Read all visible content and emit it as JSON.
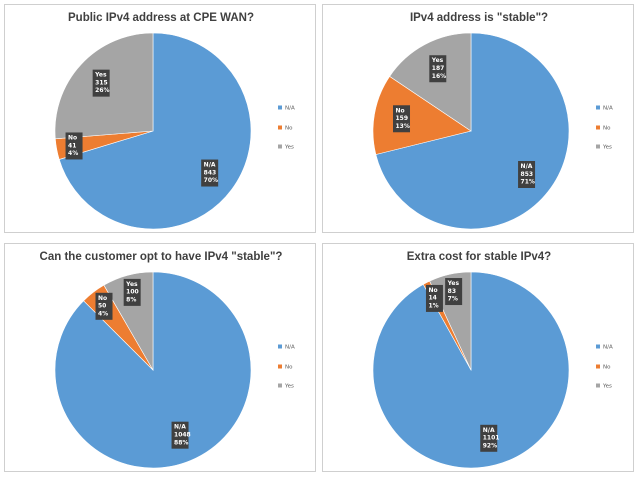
{
  "colors": {
    "N/A": "#5b9bd5",
    "No": "#ed7d31",
    "Yes": "#a5a5a5",
    "label_bg": "#404040"
  },
  "chart_data": [
    {
      "type": "pie",
      "title": "Public IPv4 address at CPE WAN?",
      "legend": "right",
      "slices": [
        {
          "name": "N/A",
          "value": 843,
          "percent": "70%"
        },
        {
          "name": "No",
          "value": 41,
          "percent": "4%"
        },
        {
          "name": "Yes",
          "value": 315,
          "percent": "26%"
        }
      ]
    },
    {
      "type": "pie",
      "title": "IPv4 address is \"stable\"?",
      "legend": "right",
      "slices": [
        {
          "name": "N/A",
          "value": 853,
          "percent": "71%"
        },
        {
          "name": "No",
          "value": 159,
          "percent": "13%"
        },
        {
          "name": "Yes",
          "value": 187,
          "percent": "16%"
        }
      ]
    },
    {
      "type": "pie",
      "title": "Can the customer opt to have IPv4 \"stable\"?",
      "legend": "right",
      "slices": [
        {
          "name": "N/A",
          "value": 1048,
          "percent": "88%"
        },
        {
          "name": "No",
          "value": 50,
          "percent": "4%"
        },
        {
          "name": "Yes",
          "value": 100,
          "percent": "8%"
        }
      ]
    },
    {
      "type": "pie",
      "title": "Extra cost for stable IPv4?",
      "legend": "right",
      "slices": [
        {
          "name": "N/A",
          "value": 1101,
          "percent": "92%"
        },
        {
          "name": "No",
          "value": 14,
          "percent": "1%"
        },
        {
          "name": "Yes",
          "value": 83,
          "percent": "7%"
        }
      ]
    }
  ]
}
